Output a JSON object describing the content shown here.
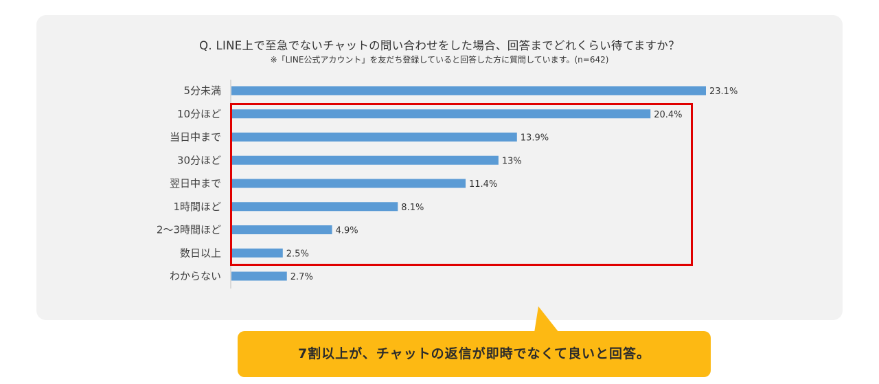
{
  "header": {
    "title": "Q. LINE上で至急でないチャットの問い合わせをした場合、回答までどれくらい待てますか？",
    "subtitle": "※「LINE公式アカウント」を友だち登録していると回答した方に質問しています。(n=642)"
  },
  "chart_data": {
    "type": "bar",
    "orientation": "horizontal",
    "categories": [
      "5分未満",
      "10分ほど",
      "当日中まで",
      "30分ほど",
      "翌日中まで",
      "1時間ほど",
      "2〜3時間ほど",
      "数日以上",
      "わからない"
    ],
    "values": [
      23.1,
      20.4,
      13.9,
      13,
      11.4,
      8.1,
      4.9,
      2.5,
      2.7
    ],
    "value_labels": [
      "23.1%",
      "20.4%",
      "13.9%",
      "13%",
      "11.4%",
      "8.1%",
      "4.9%",
      "2.5%",
      "2.7%"
    ],
    "xlim": [
      0,
      23.1
    ],
    "grid": false,
    "bar_color": "#5b9bd5"
  },
  "highlight": {
    "categories": [
      "10分ほど",
      "当日中まで",
      "30分ほど",
      "翌日中まで",
      "1時間ほど",
      "2〜3時間ほど",
      "数日以上"
    ],
    "color": "#e00000"
  },
  "callout": {
    "text": "7割以上が、チャットの返信が即時でなくて良いと回答。",
    "color": "#fdb913"
  }
}
